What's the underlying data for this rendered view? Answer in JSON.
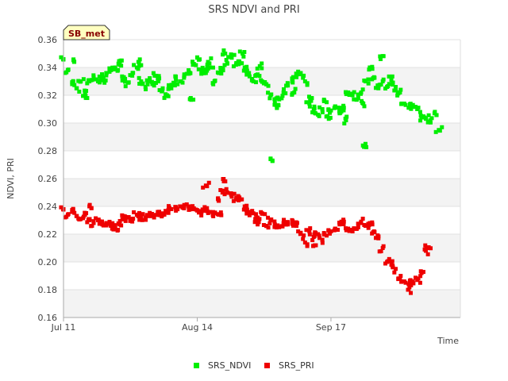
{
  "chart_data": {
    "type": "scatter",
    "title": "SRS NDVI and PRI",
    "xlabel": "Time",
    "ylabel": "NDVI, PRI",
    "site_label": "SB_met",
    "ylim": [
      0.16,
      0.36
    ],
    "yticks": [
      "0.16",
      "0.18",
      "0.20",
      "0.22",
      "0.24",
      "0.26",
      "0.28",
      "0.30",
      "0.32",
      "0.34",
      "0.36"
    ],
    "xlim_days": [
      0,
      92
    ],
    "xticks": [
      {
        "label": "Jul 11",
        "day": 0
      },
      {
        "label": "Aug 14",
        "day": 31
      },
      {
        "label": "Sep 17",
        "day": 62
      }
    ],
    "grid": "alternating horizontal bands",
    "legend_position": "bottom-center",
    "series": [
      {
        "name": "SRS_NDVI",
        "color": "#00ee00",
        "points": [
          [
            0,
            0.346
          ],
          [
            1,
            0.338
          ],
          [
            2,
            0.328
          ],
          [
            3,
            0.325
          ],
          [
            4,
            0.33
          ],
          [
            5,
            0.322
          ],
          [
            6,
            0.33
          ],
          [
            7,
            0.333
          ],
          [
            8,
            0.33
          ],
          [
            9,
            0.333
          ],
          [
            10,
            0.336
          ],
          [
            11,
            0.338
          ],
          [
            12,
            0.34
          ],
          [
            13,
            0.342
          ],
          [
            14,
            0.333
          ],
          [
            15,
            0.329
          ],
          [
            16,
            0.336
          ],
          [
            17,
            0.34
          ],
          [
            18,
            0.33
          ],
          [
            19,
            0.326
          ],
          [
            20,
            0.33
          ],
          [
            21,
            0.327
          ],
          [
            22,
            0.33
          ],
          [
            23,
            0.325
          ],
          [
            24,
            0.32
          ],
          [
            25,
            0.325
          ],
          [
            26,
            0.333
          ],
          [
            27,
            0.33
          ],
          [
            28,
            0.335
          ],
          [
            29,
            0.338
          ],
          [
            30,
            0.342
          ],
          [
            31,
            0.347
          ],
          [
            32,
            0.338
          ],
          [
            33,
            0.336
          ],
          [
            34,
            0.34
          ],
          [
            35,
            0.33
          ],
          [
            36,
            0.336
          ],
          [
            37,
            0.338
          ],
          [
            38,
            0.343
          ],
          [
            39,
            0.347
          ],
          [
            40,
            0.342
          ],
          [
            41,
            0.343
          ],
          [
            42,
            0.34
          ],
          [
            43,
            0.336
          ],
          [
            44,
            0.33
          ],
          [
            45,
            0.335
          ],
          [
            46,
            0.33
          ],
          [
            47,
            0.328
          ],
          [
            48,
            0.32
          ],
          [
            49,
            0.315
          ],
          [
            50,
            0.317
          ],
          [
            51,
            0.322
          ],
          [
            52,
            0.327
          ],
          [
            53,
            0.33
          ],
          [
            54,
            0.333
          ],
          [
            55,
            0.336
          ],
          [
            56,
            0.33
          ],
          [
            57,
            0.314
          ],
          [
            58,
            0.31
          ],
          [
            59,
            0.306
          ],
          [
            60,
            0.31
          ],
          [
            61,
            0.315
          ],
          [
            62,
            0.309
          ],
          [
            63,
            0.312
          ],
          [
            64,
            0.307
          ],
          [
            65,
            0.311
          ],
          [
            66,
            0.322
          ],
          [
            67,
            0.32
          ],
          [
            68,
            0.317
          ],
          [
            69,
            0.322
          ],
          [
            70,
            0.33
          ],
          [
            71,
            0.34
          ],
          [
            72,
            0.333
          ],
          [
            73,
            0.325
          ],
          [
            74,
            0.33
          ],
          [
            75,
            0.326
          ],
          [
            76,
            0.331
          ],
          [
            77,
            0.326
          ],
          [
            78,
            0.322
          ],
          [
            79,
            0.314
          ],
          [
            80,
            0.311
          ],
          [
            81,
            0.313
          ],
          [
            82,
            0.31
          ],
          [
            83,
            0.304
          ],
          [
            84,
            0.303
          ],
          [
            85,
            0.302
          ],
          [
            86,
            0.307
          ],
          [
            87,
            0.295
          ],
          [
            2.5,
            0.344
          ],
          [
            5.5,
            0.318
          ],
          [
            9.5,
            0.329
          ],
          [
            13.5,
            0.345
          ],
          [
            17.5,
            0.344
          ],
          [
            21.5,
            0.334
          ],
          [
            25.5,
            0.329
          ],
          [
            29.5,
            0.318
          ],
          [
            33.5,
            0.344
          ],
          [
            37.5,
            0.35
          ],
          [
            41.5,
            0.35
          ],
          [
            45.5,
            0.341
          ],
          [
            49.5,
            0.311
          ],
          [
            53.5,
            0.322
          ],
          [
            57.5,
            0.318
          ],
          [
            61.5,
            0.303
          ],
          [
            65.5,
            0.302
          ],
          [
            69.5,
            0.314
          ],
          [
            73.5,
            0.346
          ],
          [
            77.5,
            0.322
          ],
          [
            48,
            0.274
          ],
          [
            70,
            0.285
          ]
        ]
      },
      {
        "name": "SRS_PRI",
        "color": "#ee0000",
        "points": [
          [
            0,
            0.238
          ],
          [
            1,
            0.234
          ],
          [
            2,
            0.236
          ],
          [
            3,
            0.233
          ],
          [
            4,
            0.231
          ],
          [
            5,
            0.234
          ],
          [
            6,
            0.23
          ],
          [
            7,
            0.228
          ],
          [
            8,
            0.23
          ],
          [
            9,
            0.227
          ],
          [
            10,
            0.228
          ],
          [
            11,
            0.226
          ],
          [
            12,
            0.225
          ],
          [
            13,
            0.227
          ],
          [
            14,
            0.233
          ],
          [
            15,
            0.232
          ],
          [
            16,
            0.231
          ],
          [
            17,
            0.234
          ],
          [
            18,
            0.232
          ],
          [
            19,
            0.232
          ],
          [
            20,
            0.233
          ],
          [
            21,
            0.232
          ],
          [
            22,
            0.234
          ],
          [
            23,
            0.235
          ],
          [
            24,
            0.236
          ],
          [
            25,
            0.238
          ],
          [
            26,
            0.239
          ],
          [
            27,
            0.24
          ],
          [
            28,
            0.241
          ],
          [
            29,
            0.24
          ],
          [
            30,
            0.238
          ],
          [
            31,
            0.237
          ],
          [
            32,
            0.236
          ],
          [
            33,
            0.237
          ],
          [
            34,
            0.236
          ],
          [
            35,
            0.235
          ],
          [
            36,
            0.234
          ],
          [
            37,
            0.25
          ],
          [
            38,
            0.25
          ],
          [
            39,
            0.247
          ],
          [
            40,
            0.245
          ],
          [
            41,
            0.245
          ],
          [
            42,
            0.24
          ],
          [
            43,
            0.236
          ],
          [
            44,
            0.235
          ],
          [
            45,
            0.232
          ],
          [
            46,
            0.235
          ],
          [
            47,
            0.226
          ],
          [
            48,
            0.23
          ],
          [
            49,
            0.227
          ],
          [
            50,
            0.225
          ],
          [
            51,
            0.228
          ],
          [
            52,
            0.227
          ],
          [
            53,
            0.228
          ],
          [
            54,
            0.226
          ],
          [
            55,
            0.221
          ],
          [
            56,
            0.214
          ],
          [
            57,
            0.222
          ],
          [
            58,
            0.218
          ],
          [
            59,
            0.22
          ],
          [
            60,
            0.216
          ],
          [
            61,
            0.219
          ],
          [
            62,
            0.222
          ],
          [
            63,
            0.224
          ],
          [
            64,
            0.227
          ],
          [
            65,
            0.229
          ],
          [
            66,
            0.224
          ],
          [
            67,
            0.222
          ],
          [
            68,
            0.224
          ],
          [
            69,
            0.229
          ],
          [
            70,
            0.226
          ],
          [
            71,
            0.228
          ],
          [
            72,
            0.222
          ],
          [
            73,
            0.217
          ],
          [
            74,
            0.21
          ],
          [
            75,
            0.2
          ],
          [
            76,
            0.198
          ],
          [
            77,
            0.195
          ],
          [
            78,
            0.188
          ],
          [
            79,
            0.186
          ],
          [
            80,
            0.184
          ],
          [
            81,
            0.186
          ],
          [
            82,
            0.187
          ],
          [
            83,
            0.192
          ],
          [
            84,
            0.208
          ],
          [
            11.5,
            0.225
          ],
          [
            6,
            0.24
          ],
          [
            33,
            0.255
          ],
          [
            36,
            0.244
          ],
          [
            37.5,
            0.258
          ],
          [
            45,
            0.227
          ],
          [
            58.5,
            0.212
          ],
          [
            80,
            0.18
          ],
          [
            84.5,
            0.21
          ]
        ]
      }
    ]
  }
}
